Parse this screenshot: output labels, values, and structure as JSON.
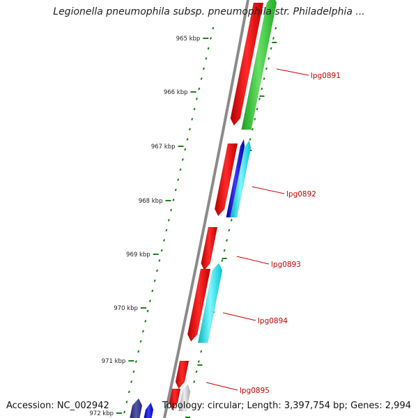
{
  "title": "Legionella pneumophila subsp. pneumophila str. Philadelphia ...",
  "accession": "Accession: NC_002942",
  "summary": "Topology: circular; Length: 3,397,754 bp; Genes: 2,994",
  "ticks": [
    "965 kbp",
    "966 kbp",
    "967 kbp",
    "968 kbp",
    "969 kbp",
    "970 kbp",
    "971 kbp",
    "972 kbp"
  ],
  "genes": [
    "lpg0891",
    "lpg0892",
    "lpg0893",
    "lpg0894",
    "lpg0895"
  ],
  "colors": {
    "backbone": "#8a8a8a",
    "ruler": "#1a7f1a",
    "label": "#cc0000",
    "cds": "#ee0000",
    "track_green": "#33cc33",
    "track_cyan": "#00e5ee",
    "track_blue": "#0000ee",
    "track_navy": "#333388",
    "track_gray": "#bbbbbb"
  }
}
